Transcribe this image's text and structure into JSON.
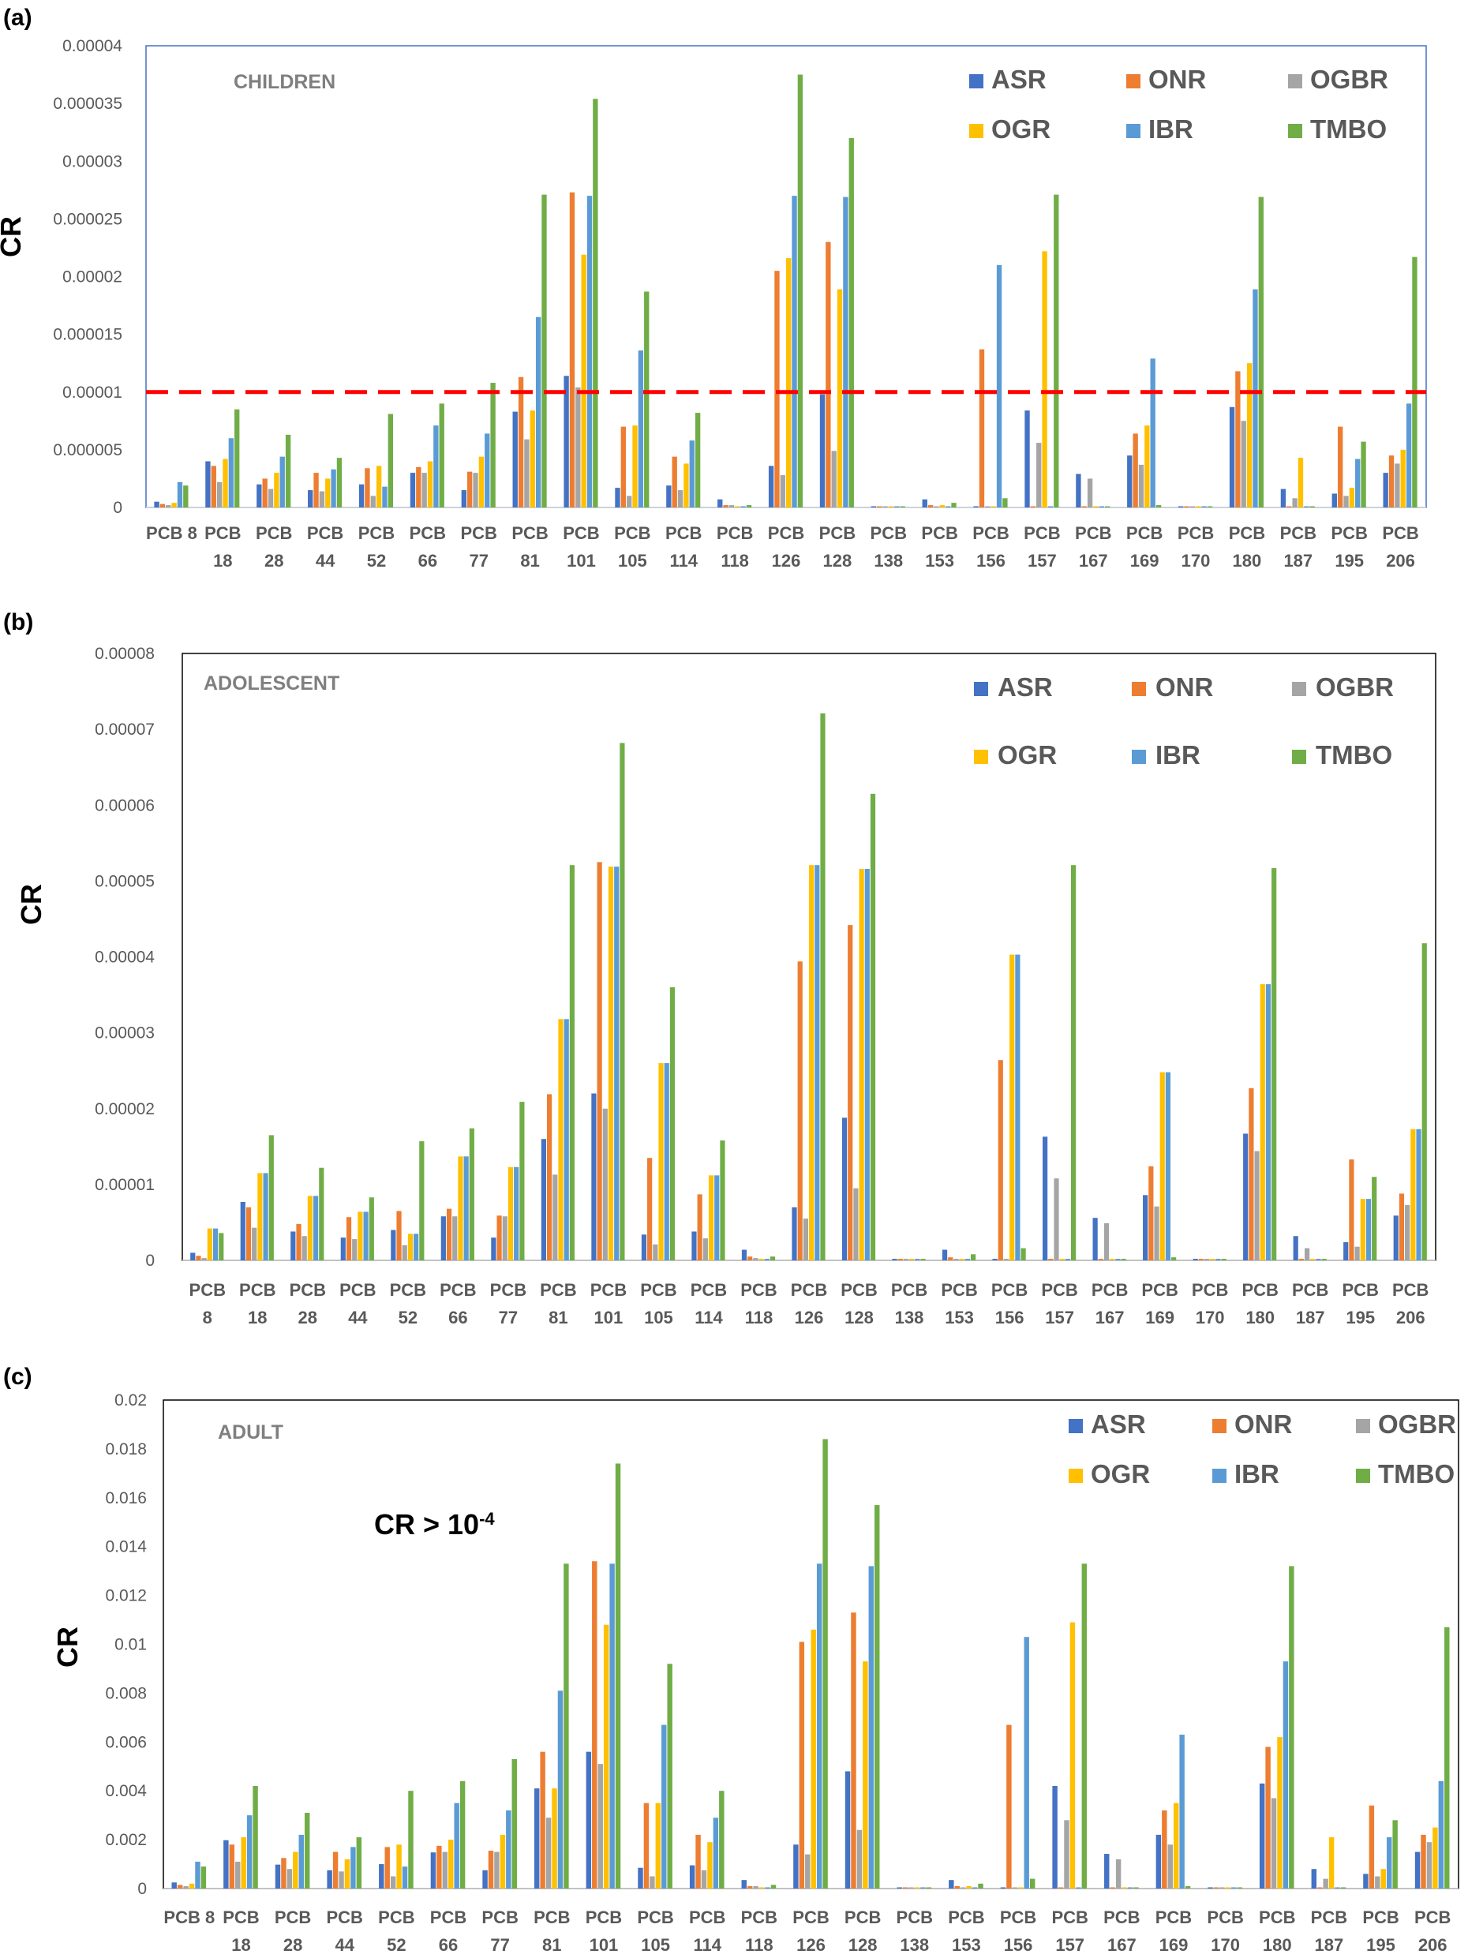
{
  "chart_data": [
    {
      "type": "bar",
      "panel_label": "(a)",
      "title": "CHILDREN",
      "ylabel": "CR",
      "ylim": [
        0,
        4e-05
      ],
      "yticks": [
        "0",
        "0.000005",
        "0.00001",
        "0.000015",
        "0.00002",
        "0.000025",
        "0.00003",
        "0.000035",
        "0.00004"
      ],
      "threshold": 1e-05,
      "categories": [
        [
          "PCB 8"
        ],
        [
          "PCB",
          "18"
        ],
        [
          "PCB",
          "28"
        ],
        [
          "PCB",
          "44"
        ],
        [
          "PCB",
          "52"
        ],
        [
          "PCB",
          "66"
        ],
        [
          "PCB",
          "77"
        ],
        [
          "PCB",
          "81"
        ],
        [
          "PCB",
          "101"
        ],
        [
          "PCB",
          "105"
        ],
        [
          "PCB",
          "114"
        ],
        [
          "PCB",
          "118"
        ],
        [
          "PCB",
          "126"
        ],
        [
          "PCB",
          "128"
        ],
        [
          "PCB",
          "138"
        ],
        [
          "PCB",
          "153"
        ],
        [
          "PCB",
          "156"
        ],
        [
          "PCB",
          "157"
        ],
        [
          "PCB",
          "167"
        ],
        [
          "PCB",
          "169"
        ],
        [
          "PCB",
          "170"
        ],
        [
          "PCB",
          "180"
        ],
        [
          "PCB",
          "187"
        ],
        [
          "PCB",
          "195"
        ],
        [
          "PCB",
          "206"
        ]
      ],
      "series": [
        {
          "name": "ASR",
          "color": "#4472C4",
          "values": [
            5e-07,
            4e-06,
            2e-06,
            1.5e-06,
            2e-06,
            3e-06,
            1.5e-06,
            8.3e-06,
            1.14e-05,
            1.7e-06,
            1.9e-06,
            7e-07,
            3.6e-06,
            9.8e-06,
            1e-07,
            7e-07,
            1e-07,
            8.4e-06,
            2.9e-06,
            4.5e-06,
            1e-07,
            8.7e-06,
            1.6e-06,
            1.2e-06,
            3e-06
          ]
        },
        {
          "name": "ONR",
          "color": "#ED7D31",
          "values": [
            3e-07,
            3.6e-06,
            2.5e-06,
            3e-06,
            3.4e-06,
            3.5e-06,
            3.1e-06,
            1.13e-05,
            2.73e-05,
            7e-06,
            4.4e-06,
            2e-07,
            2.05e-05,
            2.3e-05,
            1e-07,
            2e-07,
            1.37e-05,
            1e-07,
            1e-07,
            6.4e-06,
            1e-07,
            1.18e-05,
            1e-07,
            7e-06,
            4.5e-06
          ]
        },
        {
          "name": "OGBR",
          "color": "#A5A5A5",
          "values": [
            2e-07,
            2.2e-06,
            1.6e-06,
            1.4e-06,
            1e-06,
            3e-06,
            3e-06,
            5.9e-06,
            1.04e-05,
            1e-06,
            1.5e-06,
            2e-07,
            2.8e-06,
            4.9e-06,
            1e-07,
            1e-07,
            1e-07,
            5.6e-06,
            2.5e-06,
            3.7e-06,
            1e-07,
            7.5e-06,
            8e-07,
            1e-06,
            3.8e-06
          ]
        },
        {
          "name": "OGR",
          "color": "#FFC000",
          "values": [
            4e-07,
            4.2e-06,
            3e-06,
            2.5e-06,
            3.6e-06,
            4e-06,
            4.4e-06,
            8.4e-06,
            2.19e-05,
            7.1e-06,
            3.8e-06,
            1e-07,
            2.16e-05,
            1.89e-05,
            1e-07,
            2e-07,
            1e-07,
            2.22e-05,
            1e-07,
            7.1e-06,
            1e-07,
            1.25e-05,
            4.3e-06,
            1.7e-06,
            5e-06
          ]
        },
        {
          "name": "IBR",
          "color": "#5B9BD5",
          "values": [
            2.2e-06,
            6e-06,
            4.4e-06,
            3.3e-06,
            1.8e-06,
            7.1e-06,
            6.4e-06,
            1.65e-05,
            2.7e-05,
            1.36e-05,
            5.8e-06,
            1e-07,
            2.7e-05,
            2.69e-05,
            1e-07,
            1e-07,
            2.1e-05,
            1e-07,
            1e-07,
            1.29e-05,
            1e-07,
            1.89e-05,
            1e-07,
            4.2e-06,
            9e-06
          ]
        },
        {
          "name": "TMBO",
          "color": "#70AD47",
          "values": [
            1.9e-06,
            8.5e-06,
            6.3e-06,
            4.3e-06,
            8.1e-06,
            9e-06,
            1.08e-05,
            2.71e-05,
            3.54e-05,
            1.87e-05,
            8.2e-06,
            2e-07,
            3.75e-05,
            3.2e-05,
            1e-07,
            4e-07,
            8e-07,
            2.71e-05,
            1e-07,
            2e-07,
            1e-07,
            2.69e-05,
            1e-07,
            5.7e-06,
            2.17e-05
          ]
        }
      ]
    },
    {
      "type": "bar",
      "panel_label": "(b)",
      "title": "ADOLESCENT",
      "ylabel": "CR",
      "ylim": [
        0,
        8e-05
      ],
      "yticks": [
        "0",
        "0.00001",
        "0.00002",
        "0.00003",
        "0.00004",
        "0.00005",
        "0.00006",
        "0.00007",
        "0.00008"
      ],
      "categories": [
        [
          "PCB",
          "8"
        ],
        [
          "PCB",
          "18"
        ],
        [
          "PCB",
          "28"
        ],
        [
          "PCB",
          "44"
        ],
        [
          "PCB",
          "52"
        ],
        [
          "PCB",
          "66"
        ],
        [
          "PCB",
          "77"
        ],
        [
          "PCB",
          "81"
        ],
        [
          "PCB",
          "101"
        ],
        [
          "PCB",
          "105"
        ],
        [
          "PCB",
          "114"
        ],
        [
          "PCB",
          "118"
        ],
        [
          "PCB",
          "126"
        ],
        [
          "PCB",
          "128"
        ],
        [
          "PCB",
          "138"
        ],
        [
          "PCB",
          "153"
        ],
        [
          "PCB",
          "156"
        ],
        [
          "PCB",
          "157"
        ],
        [
          "PCB",
          "167"
        ],
        [
          "PCB",
          "169"
        ],
        [
          "PCB",
          "170"
        ],
        [
          "PCB",
          "180"
        ],
        [
          "PCB",
          "187"
        ],
        [
          "PCB",
          "195"
        ],
        [
          "PCB",
          "206"
        ]
      ],
      "series": [
        {
          "name": "ASR",
          "color": "#4472C4",
          "values": [
            1e-06,
            7.7e-06,
            3.8e-06,
            3e-06,
            4e-06,
            5.8e-06,
            3e-06,
            1.6e-05,
            2.2e-05,
            3.4e-06,
            3.8e-06,
            1.4e-06,
            7e-06,
            1.88e-05,
            2e-07,
            1.4e-06,
            2e-07,
            1.63e-05,
            5.6e-06,
            8.6e-06,
            2e-07,
            1.67e-05,
            3.2e-06,
            2.4e-06,
            5.9e-06
          ]
        },
        {
          "name": "ONR",
          "color": "#ED7D31",
          "values": [
            6e-07,
            7e-06,
            4.8e-06,
            5.7e-06,
            6.5e-06,
            6.8e-06,
            5.9e-06,
            2.19e-05,
            5.25e-05,
            1.35e-05,
            8.7e-06,
            5e-07,
            3.94e-05,
            4.42e-05,
            2e-07,
            4e-07,
            2.64e-05,
            2e-07,
            2e-07,
            1.24e-05,
            2e-07,
            2.27e-05,
            2e-07,
            1.33e-05,
            8.8e-06
          ]
        },
        {
          "name": "OGBR",
          "color": "#A5A5A5",
          "values": [
            3e-07,
            4.3e-06,
            3.2e-06,
            2.8e-06,
            2e-06,
            5.8e-06,
            5.8e-06,
            1.13e-05,
            2e-05,
            2.1e-06,
            2.9e-06,
            3e-07,
            5.5e-06,
            9.5e-06,
            2e-07,
            2e-07,
            2e-07,
            1.08e-05,
            4.9e-06,
            7.1e-06,
            2e-07,
            1.44e-05,
            1.6e-06,
            1.8e-06,
            7.3e-06
          ]
        },
        {
          "name": "OGR",
          "color": "#FFC000",
          "values": [
            4.2e-06,
            1.15e-05,
            8.5e-06,
            6.4e-06,
            3.5e-06,
            1.37e-05,
            1.23e-05,
            3.18e-05,
            5.19e-05,
            2.6e-05,
            1.12e-05,
            2e-07,
            5.21e-05,
            5.16e-05,
            2e-07,
            2e-07,
            4.03e-05,
            2e-07,
            2e-07,
            2.48e-05,
            2e-07,
            3.64e-05,
            2e-07,
            8.1e-06,
            1.73e-05
          ]
        },
        {
          "name": "IBR",
          "color": "#5B9BD5",
          "values": [
            4.2e-06,
            1.15e-05,
            8.5e-06,
            6.4e-06,
            3.5e-06,
            1.37e-05,
            1.23e-05,
            3.18e-05,
            5.19e-05,
            2.6e-05,
            1.12e-05,
            2e-07,
            5.21e-05,
            5.16e-05,
            2e-07,
            2e-07,
            4.03e-05,
            2e-07,
            2e-07,
            2.48e-05,
            2e-07,
            3.64e-05,
            2e-07,
            8.1e-06,
            1.73e-05
          ]
        },
        {
          "name": "TMBO",
          "color": "#70AD47",
          "values": [
            3.6e-06,
            1.65e-05,
            1.22e-05,
            8.3e-06,
            1.57e-05,
            1.74e-05,
            2.09e-05,
            5.21e-05,
            6.82e-05,
            3.6e-05,
            1.58e-05,
            5e-07,
            7.21e-05,
            6.15e-05,
            2e-07,
            8e-07,
            1.6e-06,
            5.21e-05,
            2e-07,
            4e-07,
            2e-07,
            5.17e-05,
            2e-07,
            1.1e-05,
            4.18e-05
          ]
        }
      ]
    },
    {
      "type": "bar",
      "panel_label": "(c)",
      "title": "ADULT",
      "ylabel": "CR",
      "annotation": "CR > 10",
      "annotation_sup": "-4",
      "ylim": [
        0,
        0.02
      ],
      "yticks": [
        "0",
        "0.002",
        "0.004",
        "0.006",
        "0.008",
        "0.01",
        "0.012",
        "0.014",
        "0.016",
        "0.018",
        "0.02"
      ],
      "categories": [
        [
          "PCB 8"
        ],
        [
          "PCB",
          "18"
        ],
        [
          "PCB",
          "28"
        ],
        [
          "PCB",
          "44"
        ],
        [
          "PCB",
          "52"
        ],
        [
          "PCB",
          "66"
        ],
        [
          "PCB",
          "77"
        ],
        [
          "PCB",
          "81"
        ],
        [
          "PCB",
          "101"
        ],
        [
          "PCB",
          "105"
        ],
        [
          "PCB",
          "114"
        ],
        [
          "PCB",
          "118"
        ],
        [
          "PCB",
          "126"
        ],
        [
          "PCB",
          "128"
        ],
        [
          "PCB",
          "138"
        ],
        [
          "PCB",
          "153"
        ],
        [
          "PCB",
          "156"
        ],
        [
          "PCB",
          "157"
        ],
        [
          "PCB",
          "167"
        ],
        [
          "PCB",
          "169"
        ],
        [
          "PCB",
          "170"
        ],
        [
          "PCB",
          "180"
        ],
        [
          "PCB",
          "187"
        ],
        [
          "PCB",
          "195"
        ],
        [
          "PCB",
          "206"
        ]
      ],
      "series": [
        {
          "name": "ASR",
          "color": "#4472C4",
          "values": [
            0.00025,
            0.00198,
            0.00098,
            0.00075,
            0.001,
            0.00148,
            0.00075,
            0.0041,
            0.0056,
            0.00085,
            0.00095,
            0.00035,
            0.0018,
            0.0048,
            5e-05,
            0.00035,
            5e-05,
            0.0042,
            0.00142,
            0.0022,
            5e-05,
            0.0043,
            0.0008,
            0.0006,
            0.0015
          ]
        },
        {
          "name": "ONR",
          "color": "#ED7D31",
          "values": [
            0.00015,
            0.0018,
            0.00125,
            0.0015,
            0.0017,
            0.00175,
            0.00155,
            0.0056,
            0.0134,
            0.0035,
            0.0022,
            0.0001,
            0.0101,
            0.0113,
            5e-05,
            0.0001,
            0.0067,
            5e-05,
            5e-05,
            0.0032,
            5e-05,
            0.0058,
            5e-05,
            0.0034,
            0.0022
          ]
        },
        {
          "name": "OGBR",
          "color": "#A5A5A5",
          "values": [
            0.0001,
            0.0011,
            0.0008,
            0.0007,
            0.0005,
            0.0015,
            0.0015,
            0.0029,
            0.0051,
            0.0005,
            0.00075,
            0.0001,
            0.0014,
            0.0024,
            5e-05,
            5e-05,
            5e-05,
            0.0028,
            0.0012,
            0.0018,
            5e-05,
            0.0037,
            0.0004,
            0.0005,
            0.0019
          ]
        },
        {
          "name": "OGR",
          "color": "#FFC000",
          "values": [
            0.0002,
            0.0021,
            0.0015,
            0.0012,
            0.0018,
            0.002,
            0.0022,
            0.0041,
            0.0108,
            0.0035,
            0.0019,
            5e-05,
            0.0106,
            0.0093,
            5e-05,
            0.0001,
            5e-05,
            0.0109,
            5e-05,
            0.0035,
            5e-05,
            0.0062,
            0.0021,
            0.0008,
            0.0025
          ]
        },
        {
          "name": "IBR",
          "color": "#5B9BD5",
          "values": [
            0.0011,
            0.003,
            0.0022,
            0.0017,
            0.0009,
            0.0035,
            0.0032,
            0.0081,
            0.0133,
            0.0067,
            0.0029,
            5e-05,
            0.0133,
            0.0132,
            5e-05,
            5e-05,
            0.0103,
            5e-05,
            5e-05,
            0.0063,
            5e-05,
            0.0093,
            5e-05,
            0.0021,
            0.0044
          ]
        },
        {
          "name": "TMBO",
          "color": "#70AD47",
          "values": [
            0.0009,
            0.0042,
            0.0031,
            0.0021,
            0.004,
            0.0044,
            0.0053,
            0.0133,
            0.0174,
            0.0092,
            0.004,
            0.00015,
            0.0184,
            0.0157,
            5e-05,
            0.0002,
            0.0004,
            0.0133,
            5e-05,
            0.0001,
            5e-05,
            0.0132,
            5e-05,
            0.0028,
            0.0107
          ]
        }
      ]
    }
  ]
}
